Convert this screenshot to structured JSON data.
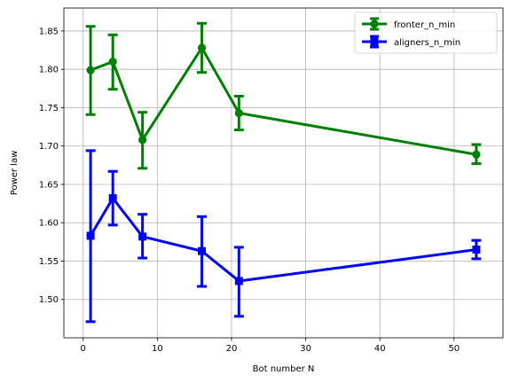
{
  "chart_data": {
    "type": "line",
    "title": "",
    "xlabel": "Bot number N",
    "ylabel": "Power law",
    "xlim": [
      -2.6,
      56.6
    ],
    "ylim": [
      1.45,
      1.88
    ],
    "xticks": [
      0,
      10,
      20,
      30,
      40,
      50
    ],
    "yticks": [
      1.5,
      1.55,
      1.6,
      1.65,
      1.7,
      1.75,
      1.8,
      1.85
    ],
    "grid": true,
    "legend_position": "top-right",
    "series": [
      {
        "name": "fronter_n_min",
        "color": "#008000",
        "marker": "circle",
        "x": [
          1,
          4,
          8,
          16,
          21,
          53
        ],
        "y": [
          1.799,
          1.81,
          1.708,
          1.828,
          1.743,
          1.689
        ],
        "err_low": [
          1.741,
          1.774,
          1.671,
          1.796,
          1.721,
          1.677
        ],
        "err_high": [
          1.856,
          1.845,
          1.744,
          1.86,
          1.765,
          1.702
        ]
      },
      {
        "name": "aligners_n_min",
        "color": "#0000ff",
        "marker": "square",
        "x": [
          1,
          4,
          8,
          16,
          21,
          53
        ],
        "y": [
          1.583,
          1.632,
          1.582,
          1.563,
          1.524,
          1.565
        ],
        "err_low": [
          1.471,
          1.597,
          1.554,
          1.517,
          1.478,
          1.553
        ],
        "err_high": [
          1.694,
          1.667,
          1.611,
          1.608,
          1.568,
          1.577
        ]
      }
    ]
  }
}
